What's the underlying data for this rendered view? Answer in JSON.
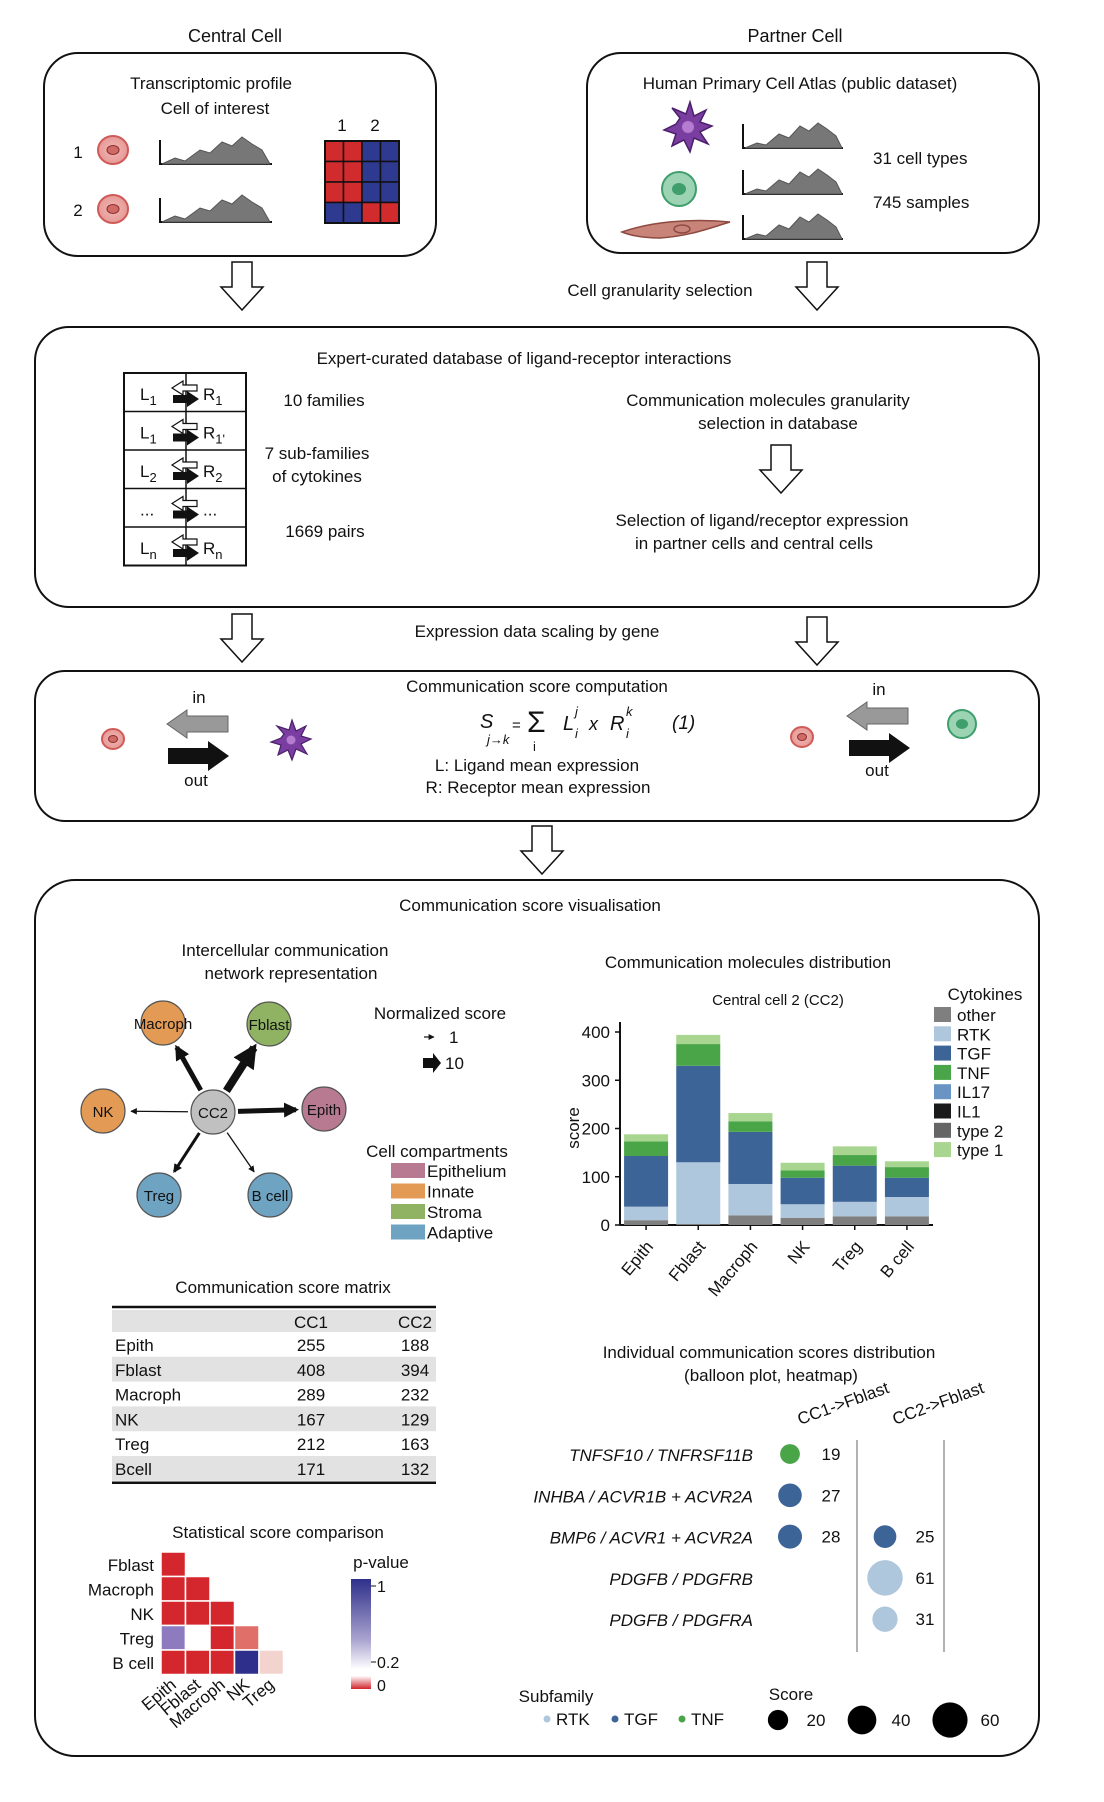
{
  "top": {
    "central_title": "Central Cell",
    "partner_title": "Partner Cell",
    "central_box": {
      "line1": "Transcriptomic profile",
      "line2": "Cell of interest",
      "cell1": "1",
      "cell2": "2",
      "col1": "1",
      "col2": "2"
    },
    "partner_box": {
      "title": "Human Primary Cell Atlas (public dataset)",
      "cell_types": "31 cell types",
      "samples": "745 samples"
    },
    "granularity": "Cell granularity selection"
  },
  "database": {
    "title": "Expert-curated database of ligand-receptor interactions",
    "families": "10 families",
    "subfam1": "7 sub-families",
    "subfam2": "of cytokines",
    "pairs": "1669 pairs",
    "comm1": "Communication molecules granularity",
    "comm2": "selection in database",
    "sel1": "Selection of ligand/receptor expression",
    "sel2": "in partner cells and central cells",
    "rows": [
      {
        "l": "L",
        "ls": "1",
        "r": "R",
        "rs": "1"
      },
      {
        "l": "L",
        "ls": "1",
        "r": "R",
        "rs": "1'"
      },
      {
        "l": "L",
        "ls": "2",
        "r": "R",
        "rs": "2"
      },
      {
        "l": "...",
        "ls": "",
        "r": "...",
        "rs": ""
      },
      {
        "l": "L",
        "ls": "n",
        "r": "R",
        "rs": "n"
      }
    ]
  },
  "scaling": "Expression data scaling by gene",
  "score_box": {
    "title": "Communication score computation",
    "in": "in",
    "out": "out",
    "formula_num": "(1)",
    "l_desc": "L: Ligand mean expression",
    "r_desc": "R: Receptor mean expression"
  },
  "vis": {
    "title": "Communication score visualisation",
    "network_title1": "Intercellular communication",
    "network_title2": "network representation",
    "nodes": [
      {
        "label": "CC2",
        "color": "#c0c0c0"
      },
      {
        "label": "Macroph",
        "color": "#e39a55"
      },
      {
        "label": "Fblast",
        "color": "#8fb363"
      },
      {
        "label": "Epith",
        "color": "#b87a90"
      },
      {
        "label": "B cell",
        "color": "#6fa3c2"
      },
      {
        "label": "Treg",
        "color": "#6fa3c2"
      },
      {
        "label": "NK",
        "color": "#e39a55"
      }
    ],
    "norm_title": "Normalized score",
    "norm_small": "1",
    "norm_large": "10",
    "compart_title": "Cell compartments",
    "compartments": [
      {
        "label": "Epithelium",
        "color": "#b87a90"
      },
      {
        "label": "Innate",
        "color": "#e39a55"
      },
      {
        "label": "Stroma",
        "color": "#8fb363"
      },
      {
        "label": "Adaptive",
        "color": "#6fa3c2"
      }
    ],
    "matrix_title": "Communication score matrix",
    "matrix_headers": [
      "",
      "CC1",
      "CC2"
    ],
    "matrix_rows": [
      [
        "Epith",
        "255",
        "188"
      ],
      [
        "Fblast",
        "408",
        "394"
      ],
      [
        "Macroph",
        "289",
        "232"
      ],
      [
        "NK",
        "167",
        "129"
      ],
      [
        "Treg",
        "212",
        "163"
      ],
      [
        "Bcell",
        "171",
        "132"
      ]
    ],
    "stat_title": "Statistical score comparison",
    "stat_rows": [
      "Fblast",
      "Macroph",
      "NK",
      "Treg",
      "B cell"
    ],
    "stat_cols": [
      "Epith",
      "Fblast",
      "Macroph",
      "NK",
      "Treg"
    ],
    "pvalue_title": "p-value",
    "pvalue_ticks": [
      "1",
      "0.2",
      "0"
    ]
  },
  "chart_data": {
    "type": "bar",
    "title": "Central cell 2 (CC2)",
    "heading": "Communication molecules distribution",
    "ylabel": "score",
    "ylim": [
      0,
      400
    ],
    "yticks": [
      0,
      100,
      200,
      300,
      400
    ],
    "categories": [
      "Epith",
      "Fblast",
      "Macroph",
      "NK",
      "Treg",
      "B cell"
    ],
    "legend_title": "Cytokines",
    "legend": [
      {
        "name": "other",
        "color": "#7f7f7f"
      },
      {
        "name": "RTK",
        "color": "#aec7dc"
      },
      {
        "name": "TGF",
        "color": "#3d6496"
      },
      {
        "name": "TNF",
        "color": "#4aa548"
      },
      {
        "name": "IL17",
        "color": "#6a94c4"
      },
      {
        "name": "IL1",
        "color": "#1a1a1a"
      },
      {
        "name": "type 2",
        "color": "#666666"
      },
      {
        "name": "type 1",
        "color": "#a8d590"
      }
    ],
    "series": [
      {
        "name": "other",
        "values": [
          10,
          2,
          20,
          15,
          18,
          18
        ]
      },
      {
        "name": "RTK",
        "values": [
          28,
          128,
          65,
          28,
          30,
          40
        ]
      },
      {
        "name": "TGF",
        "values": [
          105,
          200,
          108,
          55,
          75,
          40
        ]
      },
      {
        "name": "TNF",
        "values": [
          30,
          45,
          22,
          15,
          22,
          22
        ]
      },
      {
        "name": "type 1",
        "values": [
          15,
          19,
          17,
          16,
          18,
          12
        ]
      }
    ]
  },
  "balloon": {
    "title1": "Individual communication scores distribution",
    "title2": "(balloon plot, heatmap)",
    "cols": [
      "CC1->Fblast",
      "CC2->Fblast"
    ],
    "rows": [
      {
        "label": "TNFSF10 / TNFRSF11B",
        "cc1": 19,
        "cc1_color": "#4aa548",
        "cc2": null,
        "cc2_color": ""
      },
      {
        "label": "INHBA / ACVR1B + ACVR2A",
        "cc1": 27,
        "cc1_color": "#3d6496",
        "cc2": null,
        "cc2_color": ""
      },
      {
        "label": "BMP6 / ACVR1 + ACVR2A",
        "cc1": 28,
        "cc1_color": "#3d6496",
        "cc2": 25,
        "cc2_color": "#3d6496"
      },
      {
        "label": "PDGFB / PDGFRB",
        "cc1": null,
        "cc1_color": "",
        "cc2": 61,
        "cc2_color": "#aec7dc"
      },
      {
        "label": "PDGFB / PDGFRA",
        "cc1": null,
        "cc1_color": "",
        "cc2": 31,
        "cc2_color": "#aec7dc"
      }
    ],
    "subfamily_title": "Subfamily",
    "subfamilies": [
      {
        "name": "RTK",
        "color": "#aec7dc"
      },
      {
        "name": "TGF",
        "color": "#3d6496"
      },
      {
        "name": "TNF",
        "color": "#4aa548"
      }
    ],
    "score_title": "Score",
    "score_sizes": [
      20,
      40,
      60
    ]
  }
}
